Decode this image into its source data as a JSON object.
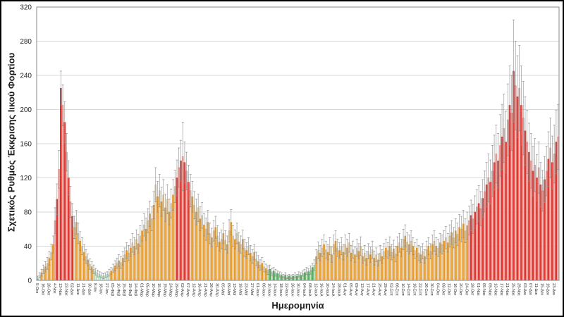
{
  "chart": {
    "y_title": "Σχετικός Ρυθμός Έκκρισης Ιικού Φορτίου",
    "x_title": "Ημερομηνία"
  },
  "chart_data": {
    "type": "bar",
    "title": "",
    "xlabel": "Ημερομηνία",
    "ylabel": "Σχετικός Ρυθμός Έκκρισης Ιικού Φορτίου",
    "ylim": [
      0,
      320
    ],
    "y_ticks": [
      0,
      40,
      80,
      120,
      160,
      200,
      240,
      280,
      320
    ],
    "grid": true,
    "legend": "none",
    "bars_per_label": 3,
    "x_tick_labels": [
      "5-Οκτ",
      "16-Οκτ",
      "26-Οκτ",
      "4-Νοε",
      "13-Νοε",
      "23-Νοε",
      "02-Δεκ",
      "11-Δεκ",
      "21-Δεκ",
      "30-Δεκ",
      "8-Ιαν",
      "18-Ιαν",
      "27-Ιαν",
      "05-Φεβ",
      "10-Φεβ",
      "15-Φεβ",
      "19-Φεβ",
      "24-Φεβ",
      "01-Μαρ",
      "05-Μαρ",
      "10-Μαρ",
      "15-Μαρ",
      "19-Μαρ",
      "24-Μαρ",
      "29-Μαρ",
      "02-Απρ",
      "07-Απρ",
      "12-Απρ",
      "16-Απρ",
      "21-Απρ",
      "26-Απρ",
      "30-Απρ",
      "05-Μαϊ",
      "09-Μαϊ",
      "13-Μαϊ",
      "18-Μαϊ",
      "23-Μαϊ",
      "27-Μαϊ",
      "01-Ιουν",
      "06-Ιουν",
      "10-Ιουν",
      "14-Ιουν",
      "18-Ιουν",
      "22-Ιουν",
      "26-Ιουν",
      "30-Ιουν",
      "04-Ιουλ",
      "08-Ιουλ",
      "12-Ιουλ",
      "16-Ιουλ",
      "20-Ιουλ",
      "24-Ιουλ",
      "28-Ιουλ",
      "01-Αυγ",
      "05-Αυγ",
      "09-Αυγ",
      "13-Αυγ",
      "17-Αυγ",
      "21-Αυγ",
      "25-Αυγ",
      "29-Αυγ",
      "02-Σεπ",
      "06-Σεπ",
      "10-Σεπ",
      "14-Σεπ",
      "18-Σεπ",
      "22-Σεπ",
      "26-Σεπ",
      "30-Σεπ",
      "04-Οκτ",
      "08-Οκτ",
      "12-Οκτ",
      "16-Οκτ",
      "20-Οκτ",
      "24-Οκτ",
      "28-Οκτ",
      "01-Νοε",
      "05-Νοε",
      "09-Νοε",
      "13-Νοε",
      "17-Νοε",
      "21-Νοε",
      "25-Νοε",
      "29-Νοε",
      "03-Δεκ",
      "07-Δεκ",
      "11-Δεκ",
      "15-Δεκ",
      "19-Δεκ",
      "23-Δεκ"
    ],
    "bar_format": [
      "value",
      "error",
      "color_code"
    ],
    "colors": {
      "grid": "#d9d9d9",
      "plot_border": "#898989",
      "error_bar": "#8c8c8c",
      "text": "#262626",
      "palette": {
        "r": [
          "#ee3a35",
          "#c41f1a"
        ],
        "R": [
          "#f6b7b2",
          "#e2837d"
        ],
        "o": [
          "#f7a733",
          "#d88a1c"
        ],
        "O": [
          "#eedbb6",
          "#cdb183"
        ],
        "g": [
          "#5eba61",
          "#2f9140"
        ],
        "G": [
          "#c5e6c5",
          "#93c793"
        ],
        "l": [
          "#d9efdd",
          "#8fcaa4"
        ],
        "L": [
          "#e9f6ec",
          "#aed8bd"
        ]
      }
    },
    "bars": [
      [
        3,
        2,
        "l"
      ],
      [
        6,
        3,
        "L"
      ],
      [
        9,
        4,
        "o"
      ],
      [
        13,
        5,
        "O"
      ],
      [
        16,
        6,
        "o"
      ],
      [
        20,
        7,
        "O"
      ],
      [
        26,
        8,
        "o"
      ],
      [
        33,
        9,
        "O"
      ],
      [
        42,
        10,
        "o"
      ],
      [
        70,
        15,
        "R"
      ],
      [
        95,
        18,
        "r"
      ],
      [
        130,
        22,
        "R"
      ],
      [
        225,
        20,
        "r"
      ],
      [
        205,
        24,
        "R"
      ],
      [
        185,
        24,
        "r"
      ],
      [
        150,
        22,
        "R"
      ],
      [
        120,
        20,
        "r"
      ],
      [
        92,
        18,
        "R"
      ],
      [
        75,
        15,
        "r"
      ],
      [
        62,
        13,
        "O"
      ],
      [
        68,
        14,
        "o"
      ],
      [
        55,
        12,
        "O"
      ],
      [
        46,
        11,
        "o"
      ],
      [
        40,
        10,
        "O"
      ],
      [
        33,
        9,
        "o"
      ],
      [
        28,
        8,
        "O"
      ],
      [
        24,
        7,
        "o"
      ],
      [
        19,
        6,
        "O"
      ],
      [
        16,
        6,
        "o"
      ],
      [
        13,
        5,
        "O"
      ],
      [
        10,
        4,
        "l"
      ],
      [
        8,
        4,
        "L"
      ],
      [
        7,
        3,
        "l"
      ],
      [
        6,
        3,
        "L"
      ],
      [
        5,
        3,
        "l"
      ],
      [
        6,
        3,
        "L"
      ],
      [
        7,
        3,
        "l"
      ],
      [
        9,
        4,
        "L"
      ],
      [
        11,
        4,
        "o"
      ],
      [
        14,
        5,
        "O"
      ],
      [
        17,
        6,
        "o"
      ],
      [
        20,
        6,
        "O"
      ],
      [
        23,
        7,
        "o"
      ],
      [
        21,
        7,
        "O"
      ],
      [
        26,
        8,
        "o"
      ],
      [
        30,
        8,
        "O"
      ],
      [
        35,
        9,
        "o"
      ],
      [
        32,
        9,
        "O"
      ],
      [
        38,
        10,
        "o"
      ],
      [
        44,
        11,
        "O"
      ],
      [
        40,
        10,
        "o"
      ],
      [
        48,
        11,
        "O"
      ],
      [
        43,
        11,
        "o"
      ],
      [
        52,
        12,
        "O"
      ],
      [
        58,
        12,
        "o"
      ],
      [
        65,
        13,
        "O"
      ],
      [
        60,
        13,
        "o"
      ],
      [
        70,
        14,
        "O"
      ],
      [
        78,
        15,
        "o"
      ],
      [
        72,
        14,
        "O"
      ],
      [
        88,
        16,
        "o"
      ],
      [
        112,
        20,
        "O"
      ],
      [
        98,
        18,
        "o"
      ],
      [
        105,
        19,
        "O"
      ],
      [
        92,
        17,
        "o"
      ],
      [
        100,
        18,
        "O"
      ],
      [
        85,
        16,
        "o"
      ],
      [
        95,
        17,
        "O"
      ],
      [
        80,
        15,
        "o"
      ],
      [
        90,
        17,
        "O"
      ],
      [
        100,
        18,
        "o"
      ],
      [
        110,
        19,
        "O"
      ],
      [
        120,
        21,
        "r"
      ],
      [
        132,
        23,
        "R"
      ],
      [
        140,
        24,
        "r"
      ],
      [
        145,
        40,
        "R"
      ],
      [
        138,
        24,
        "r"
      ],
      [
        128,
        22,
        "R"
      ],
      [
        115,
        20,
        "r"
      ],
      [
        105,
        19,
        "O"
      ],
      [
        98,
        18,
        "o"
      ],
      [
        88,
        16,
        "O"
      ],
      [
        80,
        15,
        "o"
      ],
      [
        85,
        16,
        "O"
      ],
      [
        72,
        14,
        "o"
      ],
      [
        76,
        15,
        "O"
      ],
      [
        65,
        13,
        "o"
      ],
      [
        60,
        13,
        "O"
      ],
      [
        68,
        14,
        "o"
      ],
      [
        55,
        12,
        "O"
      ],
      [
        50,
        11,
        "o"
      ],
      [
        58,
        12,
        "O"
      ],
      [
        62,
        13,
        "o"
      ],
      [
        52,
        12,
        "O"
      ],
      [
        45,
        11,
        "o"
      ],
      [
        48,
        11,
        "O"
      ],
      [
        55,
        12,
        "o"
      ],
      [
        47,
        11,
        "O"
      ],
      [
        42,
        10,
        "o"
      ],
      [
        58,
        13,
        "O"
      ],
      [
        68,
        15,
        "o"
      ],
      [
        52,
        12,
        "O"
      ],
      [
        48,
        11,
        "o"
      ],
      [
        55,
        12,
        "O"
      ],
      [
        45,
        11,
        "o"
      ],
      [
        42,
        10,
        "O"
      ],
      [
        48,
        11,
        "o"
      ],
      [
        38,
        10,
        "O"
      ],
      [
        35,
        9,
        "o"
      ],
      [
        40,
        10,
        "O"
      ],
      [
        32,
        9,
        "o"
      ],
      [
        28,
        8,
        "O"
      ],
      [
        33,
        9,
        "o"
      ],
      [
        25,
        8,
        "O"
      ],
      [
        22,
        7,
        "o"
      ],
      [
        18,
        6,
        "O"
      ],
      [
        20,
        7,
        "o"
      ],
      [
        16,
        6,
        "O"
      ],
      [
        14,
        5,
        "o"
      ],
      [
        12,
        5,
        "G"
      ],
      [
        13,
        5,
        "g"
      ],
      [
        10,
        4,
        "G"
      ],
      [
        11,
        4,
        "g"
      ],
      [
        9,
        4,
        "G"
      ],
      [
        8,
        3,
        "g"
      ],
      [
        7,
        3,
        "G"
      ],
      [
        6,
        3,
        "g"
      ],
      [
        5,
        2,
        "G"
      ],
      [
        6,
        3,
        "g"
      ],
      [
        4,
        2,
        "G"
      ],
      [
        5,
        2,
        "g"
      ],
      [
        4,
        2,
        "G"
      ],
      [
        5,
        2,
        "g"
      ],
      [
        6,
        3,
        "G"
      ],
      [
        5,
        2,
        "g"
      ],
      [
        7,
        3,
        "G"
      ],
      [
        6,
        3,
        "g"
      ],
      [
        8,
        3,
        "G"
      ],
      [
        9,
        4,
        "g"
      ],
      [
        11,
        4,
        "G"
      ],
      [
        10,
        4,
        "g"
      ],
      [
        12,
        5,
        "G"
      ],
      [
        15,
        5,
        "g"
      ],
      [
        18,
        6,
        "G"
      ],
      [
        28,
        8,
        "o"
      ],
      [
        35,
        10,
        "O"
      ],
      [
        32,
        9,
        "o"
      ],
      [
        38,
        10,
        "O"
      ],
      [
        42,
        11,
        "o"
      ],
      [
        36,
        10,
        "O"
      ],
      [
        33,
        9,
        "o"
      ],
      [
        40,
        10,
        "O"
      ],
      [
        30,
        9,
        "o"
      ],
      [
        42,
        11,
        "O"
      ],
      [
        46,
        12,
        "o"
      ],
      [
        38,
        10,
        "O"
      ],
      [
        35,
        9,
        "o"
      ],
      [
        40,
        10,
        "O"
      ],
      [
        33,
        9,
        "o"
      ],
      [
        42,
        11,
        "O"
      ],
      [
        38,
        10,
        "o"
      ],
      [
        44,
        11,
        "O"
      ],
      [
        32,
        9,
        "o"
      ],
      [
        36,
        10,
        "O"
      ],
      [
        30,
        9,
        "o"
      ],
      [
        38,
        10,
        "O"
      ],
      [
        34,
        9,
        "o"
      ],
      [
        40,
        11,
        "O"
      ],
      [
        28,
        8,
        "o"
      ],
      [
        32,
        9,
        "O"
      ],
      [
        26,
        8,
        "o"
      ],
      [
        34,
        9,
        "O"
      ],
      [
        30,
        9,
        "o"
      ],
      [
        36,
        10,
        "O"
      ],
      [
        26,
        8,
        "o"
      ],
      [
        30,
        8,
        "O"
      ],
      [
        24,
        7,
        "o"
      ],
      [
        32,
        9,
        "O"
      ],
      [
        28,
        8,
        "o"
      ],
      [
        34,
        9,
        "O"
      ],
      [
        38,
        10,
        "o"
      ],
      [
        35,
        9,
        "O"
      ],
      [
        40,
        11,
        "o"
      ],
      [
        33,
        9,
        "O"
      ],
      [
        37,
        10,
        "o"
      ],
      [
        31,
        9,
        "O"
      ],
      [
        40,
        11,
        "o"
      ],
      [
        44,
        11,
        "O"
      ],
      [
        38,
        10,
        "o"
      ],
      [
        48,
        12,
        "O"
      ],
      [
        52,
        13,
        "o"
      ],
      [
        45,
        11,
        "O"
      ],
      [
        42,
        11,
        "o"
      ],
      [
        46,
        12,
        "O"
      ],
      [
        40,
        10,
        "o"
      ],
      [
        35,
        9,
        "O"
      ],
      [
        38,
        10,
        "o"
      ],
      [
        32,
        9,
        "O"
      ],
      [
        30,
        9,
        "o"
      ],
      [
        34,
        9,
        "O"
      ],
      [
        28,
        8,
        "o"
      ],
      [
        36,
        10,
        "O"
      ],
      [
        40,
        10,
        "o"
      ],
      [
        34,
        9,
        "O"
      ],
      [
        42,
        11,
        "o"
      ],
      [
        46,
        12,
        "O"
      ],
      [
        40,
        10,
        "o"
      ],
      [
        38,
        10,
        "O"
      ],
      [
        44,
        11,
        "o"
      ],
      [
        42,
        11,
        "O"
      ],
      [
        46,
        12,
        "o"
      ],
      [
        50,
        13,
        "O"
      ],
      [
        44,
        11,
        "o"
      ],
      [
        52,
        13,
        "O"
      ],
      [
        56,
        14,
        "o"
      ],
      [
        50,
        12,
        "O"
      ],
      [
        58,
        14,
        "o"
      ],
      [
        54,
        13,
        "O"
      ],
      [
        62,
        15,
        "o"
      ],
      [
        60,
        15,
        "O"
      ],
      [
        66,
        16,
        "o"
      ],
      [
        58,
        14,
        "O"
      ],
      [
        64,
        16,
        "o"
      ],
      [
        70,
        17,
        "R"
      ],
      [
        76,
        18,
        "r"
      ],
      [
        72,
        17,
        "R"
      ],
      [
        80,
        19,
        "r"
      ],
      [
        86,
        20,
        "R"
      ],
      [
        90,
        21,
        "r"
      ],
      [
        84,
        20,
        "R"
      ],
      [
        96,
        22,
        "r"
      ],
      [
        104,
        24,
        "R"
      ],
      [
        112,
        26,
        "r"
      ],
      [
        120,
        28,
        "R"
      ],
      [
        115,
        26,
        "r"
      ],
      [
        128,
        30,
        "R"
      ],
      [
        138,
        32,
        "r"
      ],
      [
        148,
        34,
        "R"
      ],
      [
        140,
        32,
        "r"
      ],
      [
        158,
        36,
        "R"
      ],
      [
        168,
        38,
        "r"
      ],
      [
        178,
        40,
        "R"
      ],
      [
        162,
        36,
        "r"
      ],
      [
        188,
        42,
        "R"
      ],
      [
        205,
        46,
        "r"
      ],
      [
        196,
        44,
        "R"
      ],
      [
        245,
        60,
        "r"
      ],
      [
        228,
        52,
        "R"
      ],
      [
        215,
        48,
        "r"
      ],
      [
        225,
        50,
        "R"
      ],
      [
        205,
        46,
        "r"
      ],
      [
        190,
        43,
        "R"
      ],
      [
        175,
        40,
        "r"
      ],
      [
        162,
        37,
        "R"
      ],
      [
        150,
        34,
        "r"
      ],
      [
        140,
        32,
        "R"
      ],
      [
        128,
        29,
        "r"
      ],
      [
        135,
        31,
        "R"
      ],
      [
        120,
        27,
        "r"
      ],
      [
        132,
        30,
        "R"
      ],
      [
        112,
        26,
        "r"
      ],
      [
        105,
        24,
        "R"
      ],
      [
        118,
        27,
        "r"
      ],
      [
        128,
        29,
        "R"
      ],
      [
        142,
        32,
        "r"
      ],
      [
        155,
        35,
        "R"
      ],
      [
        138,
        31,
        "r"
      ],
      [
        148,
        34,
        "R"
      ],
      [
        162,
        37,
        "r"
      ],
      [
        168,
        38,
        "R"
      ]
    ]
  }
}
